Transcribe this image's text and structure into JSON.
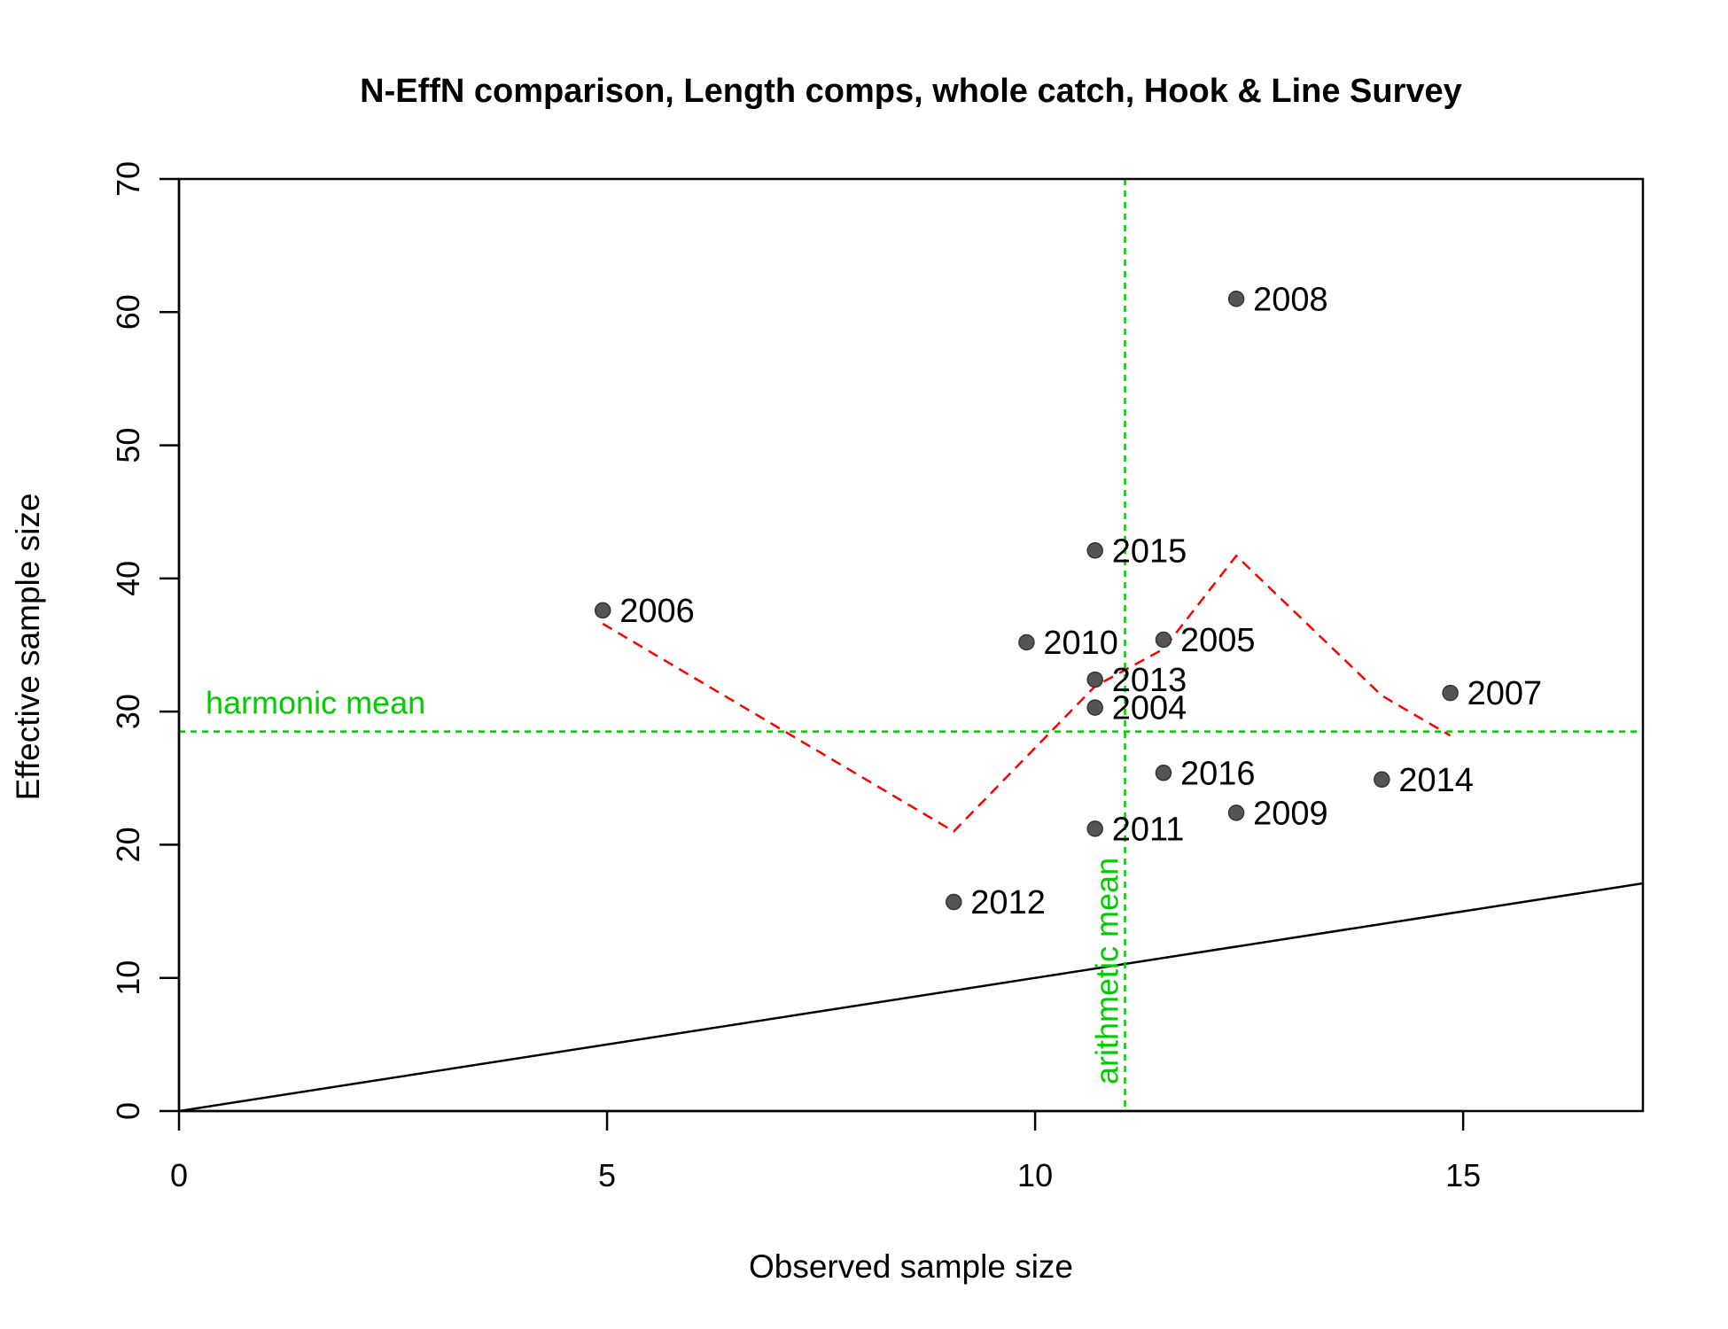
{
  "chart_data": {
    "type": "scatter",
    "title": "N-EffN comparison, Length comps, whole catch, Hook & Line Survey",
    "xlabel": "Observed sample size",
    "ylabel": "Effective sample size",
    "xlim": [
      0,
      17.1
    ],
    "ylim": [
      0,
      70
    ],
    "xticks": [
      0,
      5,
      10,
      15
    ],
    "yticks": [
      0,
      10,
      20,
      30,
      40,
      50,
      60,
      70
    ],
    "grid": false,
    "points": [
      {
        "label": "2004",
        "x": 10.7,
        "y": 30.3
      },
      {
        "label": "2005",
        "x": 11.5,
        "y": 35.4
      },
      {
        "label": "2006",
        "x": 4.95,
        "y": 37.6
      },
      {
        "label": "2007",
        "x": 14.85,
        "y": 31.4
      },
      {
        "label": "2008",
        "x": 12.35,
        "y": 61.0
      },
      {
        "label": "2009",
        "x": 12.35,
        "y": 22.4
      },
      {
        "label": "2010",
        "x": 9.9,
        "y": 35.2
      },
      {
        "label": "2011",
        "x": 10.7,
        "y": 21.2
      },
      {
        "label": "2012",
        "x": 9.05,
        "y": 15.7
      },
      {
        "label": "2013",
        "x": 10.7,
        "y": 32.4
      },
      {
        "label": "2014",
        "x": 14.05,
        "y": 24.9
      },
      {
        "label": "2015",
        "x": 10.7,
        "y": 42.1
      },
      {
        "label": "2016",
        "x": 11.5,
        "y": 25.4
      }
    ],
    "smoother": {
      "x": [
        4.95,
        9.05,
        10.7,
        11.5,
        12.35,
        14.05,
        14.85
      ],
      "y": [
        36.6,
        21.0,
        31.9,
        34.7,
        41.7,
        31.2,
        28.2
      ],
      "color": "#ff0000",
      "style": "dashed"
    },
    "identity_line": {
      "slope": 1,
      "intercept": 0,
      "color": "#000000"
    },
    "harmonic_mean": {
      "value": 28.5,
      "label": "harmonic mean",
      "color": "#00cc00"
    },
    "arithmetic_mean": {
      "value": 11.05,
      "label": "arithmetic mean",
      "color": "#00cc00"
    },
    "point_color": "#555555"
  }
}
